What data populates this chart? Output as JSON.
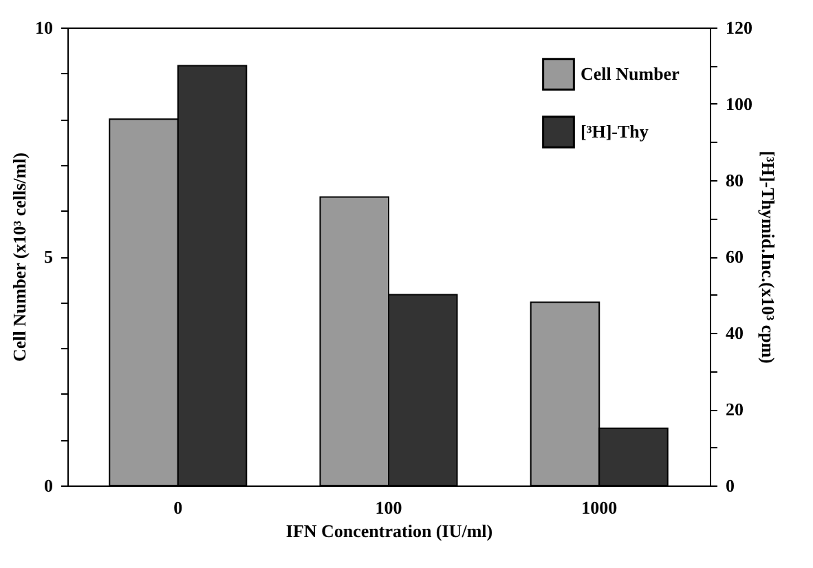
{
  "chart_data": {
    "type": "bar",
    "xlabel": "IFN Concentration (IU/ml)",
    "ylabel": "Cell Number (x10³ cells/ml)",
    "y2label": "[³H]-Thymid.Inc.(x10³ cpm)",
    "categories": [
      "0",
      "100",
      "1000"
    ],
    "series": [
      {
        "name": "Cell Number",
        "color": "#999999",
        "values": [
          8.0,
          6.3,
          4.0
        ]
      },
      {
        "name": "[³H]-Thy",
        "color": "#333333",
        "values": [
          110,
          50,
          15
        ],
        "axis": "y2"
      }
    ],
    "ylim": [
      0,
      10
    ],
    "yticks": [
      0,
      {
        "value": 1,
        "label": null
      },
      {
        "value": 2,
        "label": null
      },
      {
        "value": 3,
        "label": null
      },
      {
        "value": 4,
        "label": null
      },
      5,
      {
        "value": 6,
        "label": null
      },
      {
        "value": 7,
        "label": null
      },
      {
        "value": 8,
        "label": null
      },
      {
        "value": 9,
        "label": null
      },
      10
    ],
    "y2lim": [
      0,
      120
    ],
    "y2ticks": [
      0,
      {
        "value": 10,
        "label": null
      },
      20,
      {
        "value": 30,
        "label": null
      },
      40,
      {
        "value": 50,
        "label": null
      },
      60,
      {
        "value": 70,
        "label": null
      },
      80,
      {
        "value": 90,
        "label": null
      },
      100,
      {
        "value": 110,
        "label": null
      },
      120
    ],
    "grid": false,
    "legend": "top right"
  }
}
